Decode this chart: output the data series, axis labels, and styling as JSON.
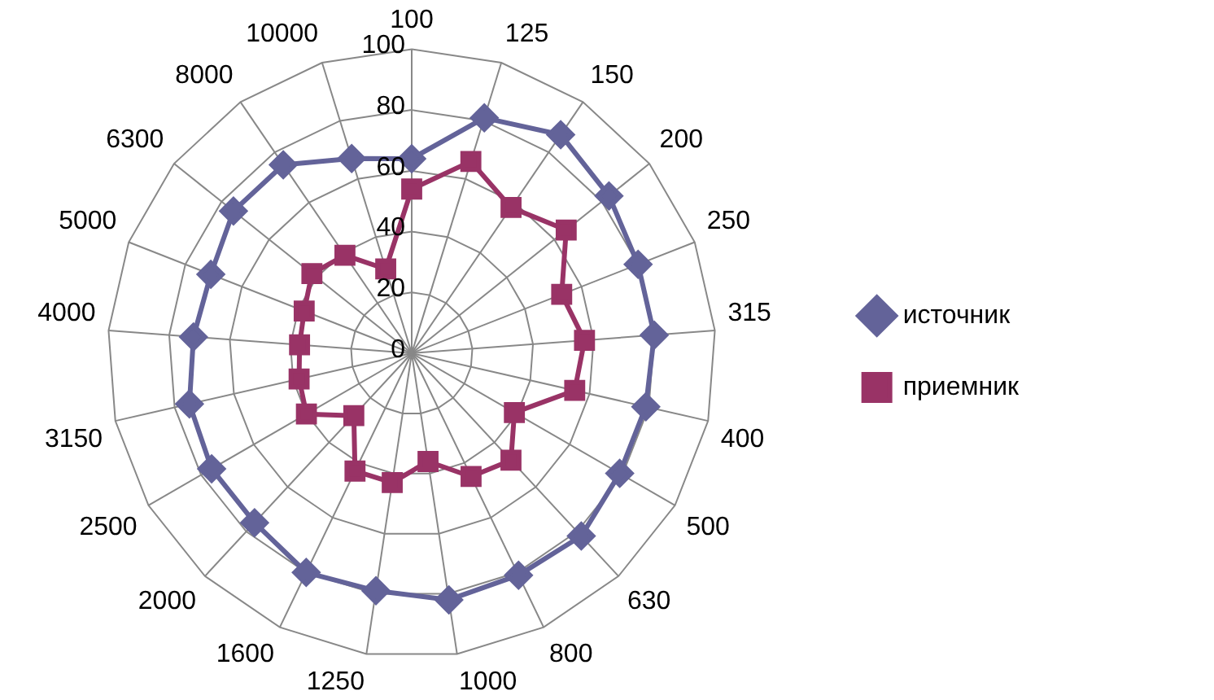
{
  "chart_data": {
    "type": "radar",
    "categories": [
      "100",
      "125",
      "150",
      "200",
      "250",
      "315",
      "400",
      "500",
      "630",
      "800",
      "1000",
      "1250",
      "1600",
      "2000",
      "2500",
      "3150",
      "4000",
      "5000",
      "6300",
      "8000",
      "10000"
    ],
    "series": [
      {
        "name": "источник",
        "color": "#636399",
        "marker": "diamond",
        "values": [
          64,
          81,
          87,
          83,
          80,
          80,
          79,
          79,
          82,
          81,
          82,
          79,
          80,
          76,
          76,
          75,
          72,
          71,
          75,
          75,
          67
        ]
      },
      {
        "name": "приемник",
        "color": "#993366",
        "marker": "square",
        "values": [
          54,
          66,
          58,
          65,
          53,
          57,
          55,
          39,
          48,
          45,
          36,
          43,
          43,
          28,
          40,
          38,
          37,
          38,
          42,
          39,
          29
        ]
      }
    ],
    "ylim": [
      0,
      100
    ],
    "yticks": [
      0,
      20,
      40,
      60,
      80,
      100
    ],
    "grid": true,
    "legend": "right"
  }
}
